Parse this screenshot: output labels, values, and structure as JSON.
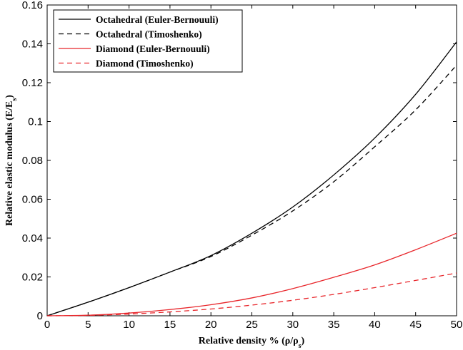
{
  "chart_data": {
    "type": "line",
    "xlabel": "Relative density % (ρ/ρs)",
    "ylabel": "Relative elastic modulus (E/Es)",
    "xlim": [
      0,
      50
    ],
    "ylim": [
      0,
      0.16
    ],
    "xticks": [
      0,
      5,
      10,
      15,
      20,
      25,
      30,
      35,
      40,
      45,
      50
    ],
    "yticks": [
      0,
      0.02,
      0.04,
      0.06,
      0.08,
      0.1,
      0.12,
      0.14,
      0.16
    ],
    "xtick_labels": [
      "0",
      "5",
      "10",
      "15",
      "20",
      "25",
      "30",
      "35",
      "40",
      "45",
      "50"
    ],
    "ytick_labels": [
      "0",
      "0.02",
      "0.04",
      "0.06",
      "0.08",
      "0.1",
      "0.12",
      "0.14",
      "0.16"
    ],
    "grid": false,
    "legend_position": "top-left",
    "x": [
      0,
      5,
      10,
      15,
      20,
      25,
      30,
      35,
      40,
      45,
      50
    ],
    "series": [
      {
        "name": "Octahedral (Euler-Bernouuli)",
        "color": "#000000",
        "dash": "solid",
        "values": [
          0,
          0.007,
          0.0145,
          0.0225,
          0.031,
          0.0425,
          0.056,
          0.0725,
          0.0915,
          0.114,
          0.141
        ]
      },
      {
        "name": "Octahedral (Timoshenko)",
        "color": "#000000",
        "dash": "dashed",
        "values": [
          0,
          0.007,
          0.0145,
          0.0225,
          0.0305,
          0.0415,
          0.054,
          0.069,
          0.087,
          0.106,
          0.129
        ]
      },
      {
        "name": "Diamond (Euler-Bernouuli)",
        "color": "#e8262b",
        "dash": "solid",
        "values": [
          0,
          0.0003,
          0.0014,
          0.0032,
          0.0057,
          0.0092,
          0.014,
          0.0198,
          0.0262,
          0.034,
          0.0425
        ]
      },
      {
        "name": "Diamond (Timoshenko)",
        "color": "#e8262b",
        "dash": "dashed",
        "values": [
          0,
          0.0002,
          0.0009,
          0.002,
          0.0035,
          0.0055,
          0.008,
          0.011,
          0.0145,
          0.0182,
          0.022
        ]
      }
    ]
  }
}
